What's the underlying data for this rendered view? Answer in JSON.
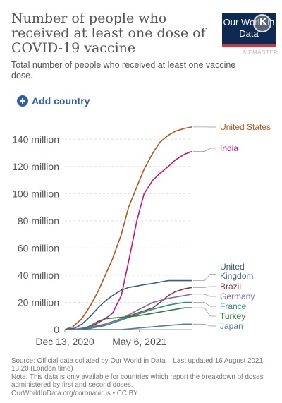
{
  "header": {
    "title": "Number of people who received at least one dose of COVID-19 vaccine",
    "subtitle": "Total number of people who received at least one vaccine dose.",
    "logo_text": "Our World in Data",
    "watermark": "MEMASTER"
  },
  "controls": {
    "add_country_label": "Add country"
  },
  "chart_data": {
    "type": "line",
    "title": "Number of people who received at least one dose of COVID-19 vaccine",
    "xlabel": "",
    "ylabel": "",
    "x_ticks": [
      "Dec 13, 2020",
      "May 6, 2021"
    ],
    "x_range": [
      "2020-12-13",
      "2021-08-15"
    ],
    "y_ticks": [
      0,
      20,
      40,
      60,
      80,
      100,
      120,
      140
    ],
    "y_tick_labels": [
      "0",
      "20 million",
      "40 million",
      "60 million",
      "80 million",
      "100 million",
      "120 million",
      "140 million"
    ],
    "ylim": [
      0,
      150
    ],
    "grid": "horizontal",
    "legend": "line-end labels, right",
    "series": [
      {
        "name": "United States",
        "color": "#b5551d",
        "points": [
          [
            "2020-12-13",
            0
          ],
          [
            "2020-12-28",
            2
          ],
          [
            "2021-01-15",
            8
          ],
          [
            "2021-02-01",
            18
          ],
          [
            "2021-02-15",
            28
          ],
          [
            "2021-03-01",
            40
          ],
          [
            "2021-03-15",
            52
          ],
          [
            "2021-04-01",
            70
          ],
          [
            "2021-04-15",
            90
          ],
          [
            "2021-05-01",
            105
          ],
          [
            "2021-05-15",
            118
          ],
          [
            "2021-06-01",
            130
          ],
          [
            "2021-06-15",
            138
          ],
          [
            "2021-07-01",
            143
          ],
          [
            "2021-07-15",
            146
          ],
          [
            "2021-08-01",
            148
          ],
          [
            "2021-08-15",
            149
          ]
        ]
      },
      {
        "name": "India",
        "color": "#c4157a",
        "points": [
          [
            "2020-12-13",
            0
          ],
          [
            "2021-01-15",
            0
          ],
          [
            "2021-02-01",
            2
          ],
          [
            "2021-02-15",
            5
          ],
          [
            "2021-03-01",
            8
          ],
          [
            "2021-03-15",
            12
          ],
          [
            "2021-04-01",
            25
          ],
          [
            "2021-04-15",
            50
          ],
          [
            "2021-05-01",
            80
          ],
          [
            "2021-05-15",
            100
          ],
          [
            "2021-06-01",
            110
          ],
          [
            "2021-06-15",
            115
          ],
          [
            "2021-07-01",
            120
          ],
          [
            "2021-07-15",
            125
          ],
          [
            "2021-08-01",
            129
          ],
          [
            "2021-08-15",
            131
          ]
        ]
      },
      {
        "name": "United Kingdom",
        "color": "#3d5a80",
        "points": [
          [
            "2020-12-13",
            0
          ],
          [
            "2021-01-01",
            1
          ],
          [
            "2021-01-15",
            4
          ],
          [
            "2021-02-01",
            10
          ],
          [
            "2021-02-15",
            16
          ],
          [
            "2021-03-01",
            21
          ],
          [
            "2021-03-15",
            25
          ],
          [
            "2021-04-01",
            29
          ],
          [
            "2021-04-15",
            31
          ],
          [
            "2021-05-01",
            32
          ],
          [
            "2021-05-15",
            33
          ],
          [
            "2021-06-01",
            34
          ],
          [
            "2021-06-15",
            35
          ],
          [
            "2021-07-01",
            36
          ],
          [
            "2021-08-15",
            36
          ]
        ]
      },
      {
        "name": "Brazil",
        "color": "#8a3a3a",
        "points": [
          [
            "2020-12-13",
            0
          ],
          [
            "2021-01-15",
            0
          ],
          [
            "2021-02-01",
            1
          ],
          [
            "2021-03-01",
            4
          ],
          [
            "2021-04-01",
            8
          ],
          [
            "2021-05-01",
            12
          ],
          [
            "2021-06-01",
            16
          ],
          [
            "2021-06-15",
            20
          ],
          [
            "2021-07-01",
            25
          ],
          [
            "2021-07-15",
            28
          ],
          [
            "2021-08-01",
            30
          ],
          [
            "2021-08-15",
            31
          ]
        ]
      },
      {
        "name": "Germany",
        "color": "#826bb0",
        "points": [
          [
            "2020-12-13",
            0
          ],
          [
            "2020-12-28",
            0
          ],
          [
            "2021-01-15",
            1
          ],
          [
            "2021-02-01",
            2
          ],
          [
            "2021-03-01",
            4
          ],
          [
            "2021-04-01",
            8
          ],
          [
            "2021-05-01",
            14
          ],
          [
            "2021-06-01",
            20
          ],
          [
            "2021-07-01",
            23
          ],
          [
            "2021-08-01",
            25
          ],
          [
            "2021-08-15",
            26
          ]
        ]
      },
      {
        "name": "France",
        "color": "#2a8d8c",
        "points": [
          [
            "2020-12-13",
            0
          ],
          [
            "2021-01-01",
            0
          ],
          [
            "2021-02-01",
            1
          ],
          [
            "2021-03-01",
            3
          ],
          [
            "2021-04-01",
            7
          ],
          [
            "2021-05-01",
            11
          ],
          [
            "2021-06-01",
            15
          ],
          [
            "2021-07-01",
            18
          ],
          [
            "2021-08-01",
            20
          ],
          [
            "2021-08-15",
            20
          ]
        ]
      },
      {
        "name": "Turkey",
        "color": "#2f7a3a",
        "points": [
          [
            "2020-12-13",
            0
          ],
          [
            "2021-01-15",
            0
          ],
          [
            "2021-02-01",
            3
          ],
          [
            "2021-02-15",
            6
          ],
          [
            "2021-03-01",
            8
          ],
          [
            "2021-04-01",
            9
          ],
          [
            "2021-05-01",
            10
          ],
          [
            "2021-06-01",
            12
          ],
          [
            "2021-07-01",
            14
          ],
          [
            "2021-08-01",
            16
          ],
          [
            "2021-08-15",
            16
          ]
        ]
      },
      {
        "name": "Japan",
        "color": "#5c7a9c",
        "points": [
          [
            "2020-12-13",
            0
          ],
          [
            "2021-03-01",
            0
          ],
          [
            "2021-04-01",
            0
          ],
          [
            "2021-05-01",
            1
          ],
          [
            "2021-06-01",
            2
          ],
          [
            "2021-07-01",
            3
          ],
          [
            "2021-08-01",
            4
          ],
          [
            "2021-08-15",
            4
          ]
        ]
      }
    ],
    "series_labels": [
      "United States",
      "India",
      "United Kingdom",
      "Brazil",
      "Germany",
      "France",
      "Turkey",
      "Japan"
    ]
  },
  "footer": {
    "source": "Source: Official data collated by Our World in Data – Last updated 16 August 2021, 13:20 (London time)",
    "note": "Note: This data is only available for countries which report the breakdown of doses administered by first and second doses.",
    "link": "OurWorldInData.org/coronavirus • CC BY"
  }
}
